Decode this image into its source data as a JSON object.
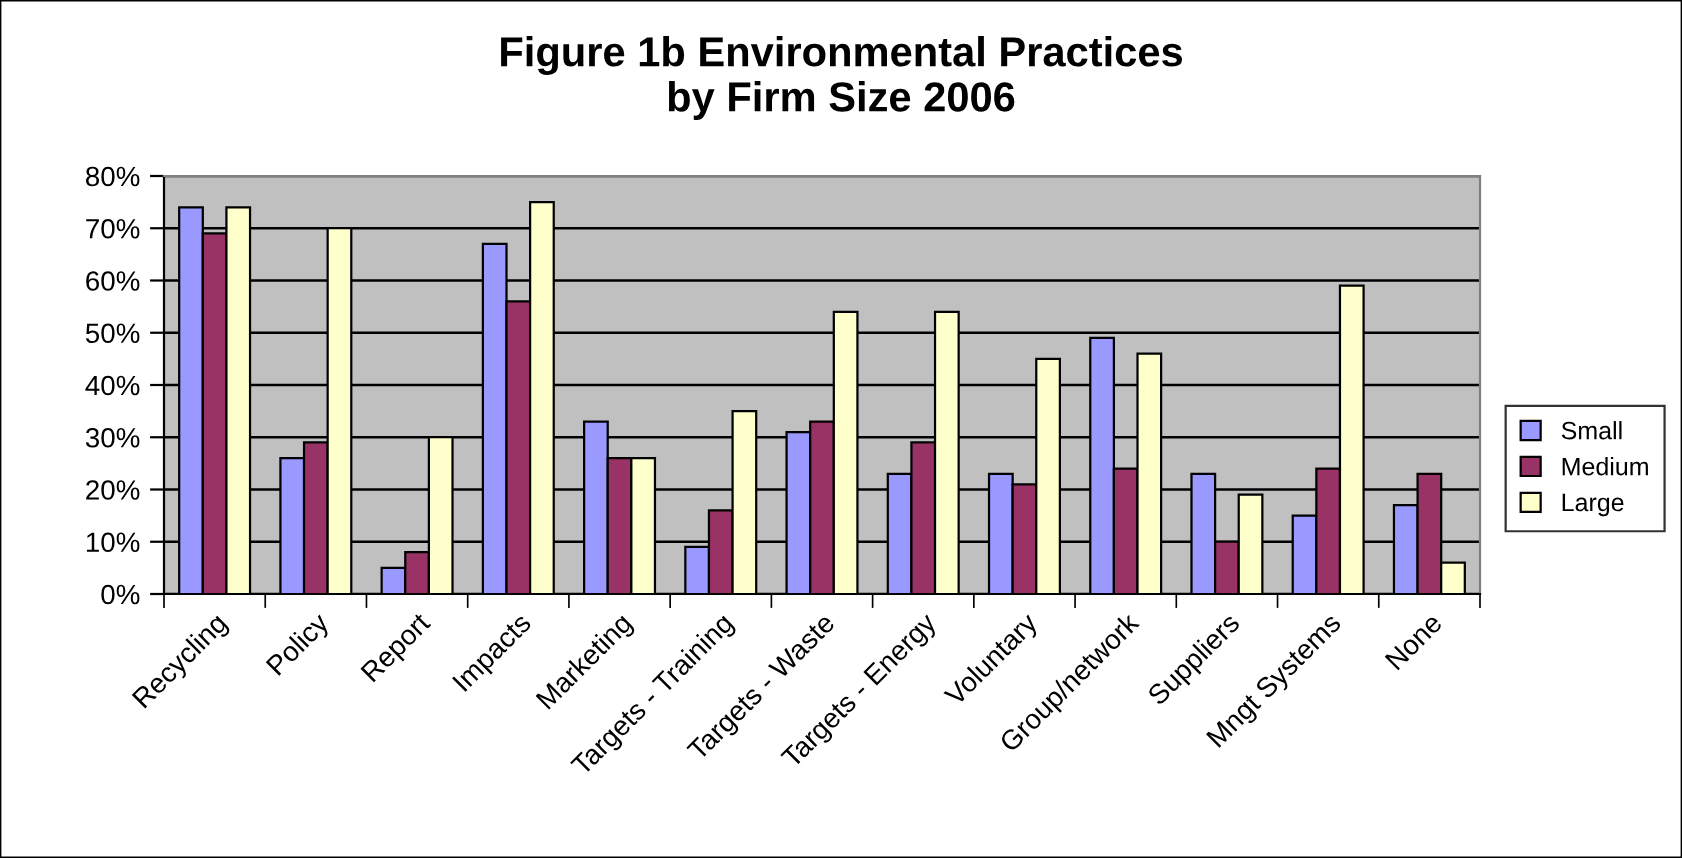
{
  "chart_data": {
    "type": "bar",
    "title": "Figure 1b Environmental Practices\nby Firm Size 2006",
    "categories": [
      "Recycling",
      "Policy",
      "Report",
      "Impacts",
      "Marketing",
      "Targets - Training",
      "Targets - Waste",
      "Targets - Energy",
      "Voluntary",
      "Group/network",
      "Suppliers",
      "Mngt Systems",
      "None"
    ],
    "series": [
      {
        "name": "Small",
        "color": "#9999ff",
        "values": [
          74,
          26,
          5,
          67,
          33,
          9,
          31,
          23,
          23,
          49,
          23,
          15,
          17
        ]
      },
      {
        "name": "Medium",
        "color": "#993366",
        "values": [
          69,
          29,
          8,
          56,
          26,
          16,
          33,
          29,
          21,
          24,
          10,
          24,
          23
        ]
      },
      {
        "name": "Large",
        "color": "#ffffcc",
        "values": [
          74,
          70,
          30,
          75,
          26,
          35,
          54,
          54,
          45,
          46,
          19,
          59,
          6
        ]
      }
    ],
    "ylim": [
      0,
      80
    ],
    "yticks": [
      {
        "value": 0,
        "label": "0%"
      },
      {
        "value": 10,
        "label": "10%"
      },
      {
        "value": 20,
        "label": "20%"
      },
      {
        "value": 30,
        "label": "30%"
      },
      {
        "value": 40,
        "label": "40%"
      },
      {
        "value": 50,
        "label": "50%"
      },
      {
        "value": 60,
        "label": "60%"
      },
      {
        "value": 70,
        "label": "70%"
      },
      {
        "value": 80,
        "label": "80%"
      }
    ],
    "grid": "y",
    "legend": "right"
  }
}
